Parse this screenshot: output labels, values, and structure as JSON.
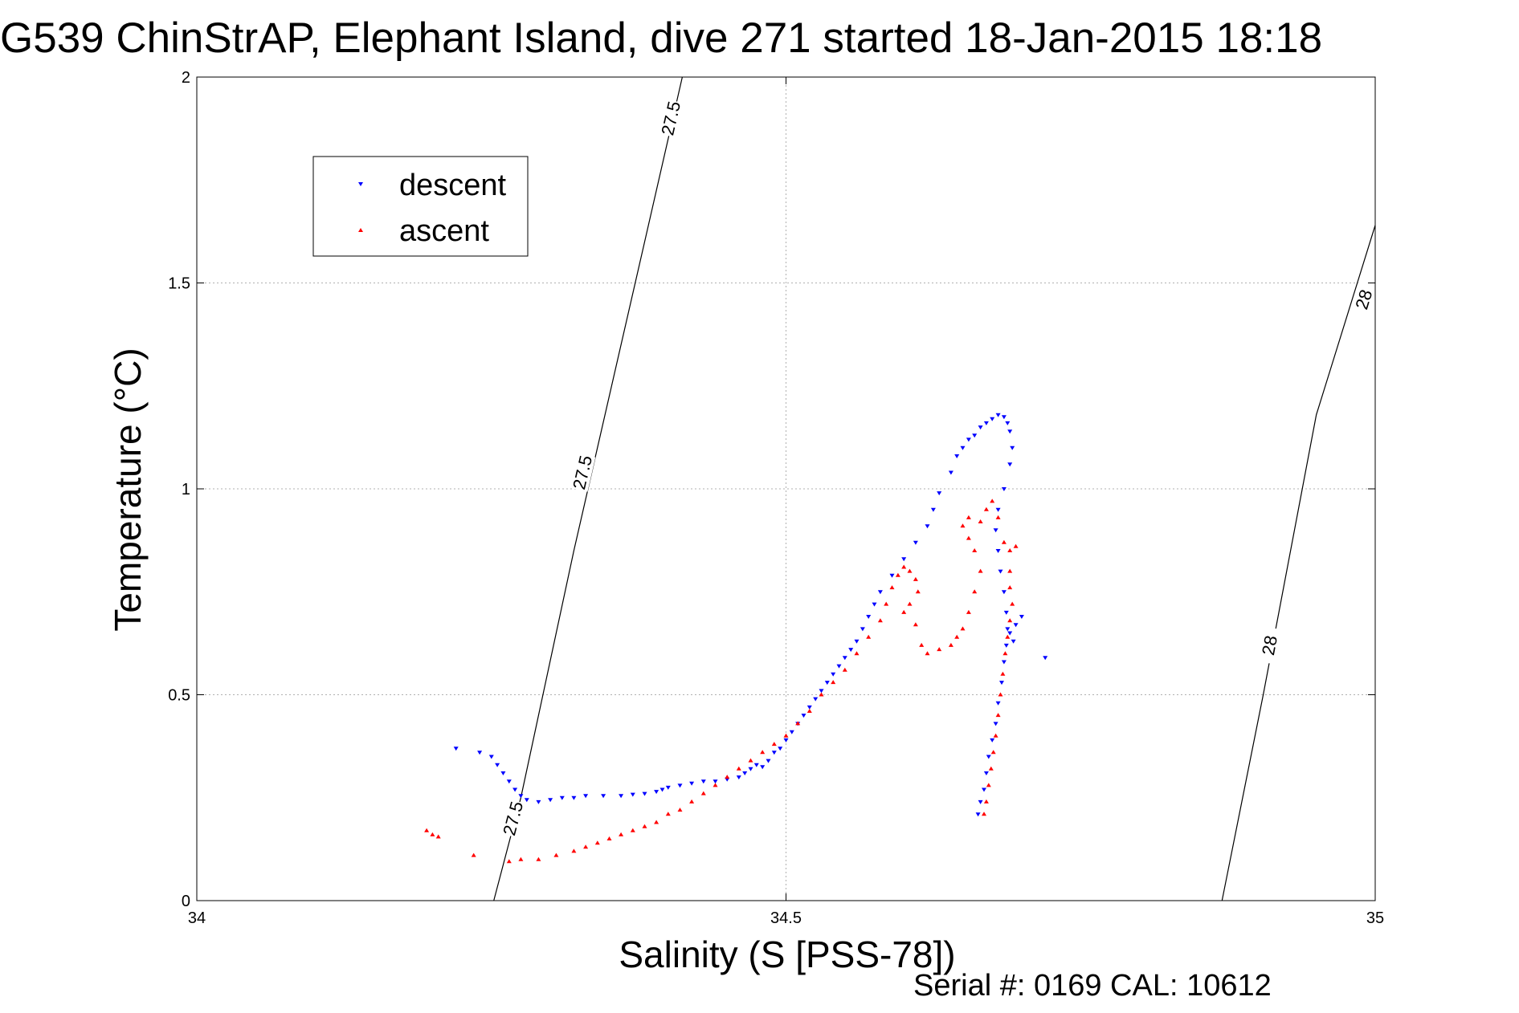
{
  "title": "G539 ChinStrAP, Elephant Island, dive 271 started 18-Jan-2015 18:18",
  "footer": "Serial #: 0169 CAL: 10612",
  "colors": {
    "descent": "#0000ff",
    "ascent": "#ff0000",
    "contour": "#000000",
    "grid": "#b0b0b0"
  },
  "chart_data": {
    "type": "scatter",
    "title": "G539 ChinStrAP, Elephant Island, dive 271 started 18-Jan-2015 18:18",
    "xlabel": "Salinity (S [PSS-78])",
    "ylabel": "Temperature (°C)",
    "xlim": [
      34,
      35
    ],
    "ylim": [
      0,
      2
    ],
    "xticks": [
      34,
      34.5,
      35
    ],
    "xtick_labels": [
      "34",
      "34.5",
      "35"
    ],
    "yticks": [
      0,
      0.5,
      1,
      1.5,
      2
    ],
    "ytick_labels": [
      "0",
      "0.5",
      "1",
      "1.5",
      "2"
    ],
    "grid": true,
    "legend": {
      "placement": "top-left",
      "entries": [
        "descent",
        "ascent"
      ]
    },
    "contours": [
      {
        "label": "27.5",
        "points": [
          [
            34.252,
            0.0
          ],
          [
            34.275,
            0.25
          ],
          [
            34.32,
            0.85
          ],
          [
            34.38,
            1.6
          ],
          [
            34.412,
            2.0
          ]
        ],
        "label_positions": [
          [
            34.268,
            0.2
          ],
          [
            34.327,
            1.04
          ],
          [
            34.402,
            1.9
          ]
        ]
      },
      {
        "label": "28",
        "points": [
          [
            34.87,
            0.0
          ],
          [
            34.905,
            0.5
          ],
          [
            34.95,
            1.18
          ],
          [
            35.0,
            1.64
          ]
        ],
        "label_positions": [
          [
            34.91,
            0.62
          ],
          [
            34.99,
            1.46
          ]
        ]
      }
    ],
    "series": [
      {
        "name": "descent",
        "marker": "triangle-down",
        "points": [
          [
            34.22,
            0.37
          ],
          [
            34.24,
            0.36
          ],
          [
            34.25,
            0.35
          ],
          [
            34.255,
            0.33
          ],
          [
            34.26,
            0.31
          ],
          [
            34.265,
            0.29
          ],
          [
            34.27,
            0.27
          ],
          [
            34.275,
            0.255
          ],
          [
            34.28,
            0.245
          ],
          [
            34.29,
            0.24
          ],
          [
            34.3,
            0.245
          ],
          [
            34.31,
            0.25
          ],
          [
            34.32,
            0.25
          ],
          [
            34.33,
            0.255
          ],
          [
            34.345,
            0.255
          ],
          [
            34.36,
            0.255
          ],
          [
            34.37,
            0.258
          ],
          [
            34.38,
            0.26
          ],
          [
            34.39,
            0.265
          ],
          [
            34.395,
            0.27
          ],
          [
            34.4,
            0.275
          ],
          [
            34.41,
            0.28
          ],
          [
            34.42,
            0.285
          ],
          [
            34.43,
            0.29
          ],
          [
            34.44,
            0.29
          ],
          [
            34.45,
            0.295
          ],
          [
            34.46,
            0.3
          ],
          [
            34.465,
            0.31
          ],
          [
            34.47,
            0.32
          ],
          [
            34.475,
            0.33
          ],
          [
            34.48,
            0.325
          ],
          [
            34.485,
            0.34
          ],
          [
            34.49,
            0.36
          ],
          [
            34.495,
            0.37
          ],
          [
            34.5,
            0.39
          ],
          [
            34.505,
            0.41
          ],
          [
            34.51,
            0.43
          ],
          [
            34.515,
            0.45
          ],
          [
            34.52,
            0.47
          ],
          [
            34.525,
            0.49
          ],
          [
            34.53,
            0.51
          ],
          [
            34.535,
            0.53
          ],
          [
            34.54,
            0.55
          ],
          [
            34.545,
            0.57
          ],
          [
            34.55,
            0.59
          ],
          [
            34.555,
            0.61
          ],
          [
            34.56,
            0.63
          ],
          [
            34.565,
            0.66
          ],
          [
            34.57,
            0.69
          ],
          [
            34.575,
            0.72
          ],
          [
            34.58,
            0.75
          ],
          [
            34.59,
            0.79
          ],
          [
            34.6,
            0.83
          ],
          [
            34.61,
            0.87
          ],
          [
            34.62,
            0.91
          ],
          [
            34.625,
            0.95
          ],
          [
            34.63,
            0.99
          ],
          [
            34.64,
            1.04
          ],
          [
            34.645,
            1.08
          ],
          [
            34.65,
            1.1
          ],
          [
            34.655,
            1.12
          ],
          [
            34.66,
            1.13
          ],
          [
            34.665,
            1.15
          ],
          [
            34.67,
            1.16
          ],
          [
            34.675,
            1.17
          ],
          [
            34.68,
            1.18
          ],
          [
            34.685,
            1.175
          ],
          [
            34.688,
            1.16
          ],
          [
            34.69,
            1.14
          ],
          [
            34.692,
            1.1
          ],
          [
            34.69,
            1.06
          ],
          [
            34.685,
            1.0
          ],
          [
            34.68,
            0.95
          ],
          [
            34.678,
            0.9
          ],
          [
            34.68,
            0.85
          ],
          [
            34.682,
            0.8
          ],
          [
            34.685,
            0.75
          ],
          [
            34.687,
            0.7
          ],
          [
            34.688,
            0.66
          ],
          [
            34.687,
            0.62
          ],
          [
            34.685,
            0.58
          ],
          [
            34.683,
            0.53
          ],
          [
            34.68,
            0.48
          ],
          [
            34.678,
            0.43
          ],
          [
            34.675,
            0.39
          ],
          [
            34.672,
            0.35
          ],
          [
            34.67,
            0.31
          ],
          [
            34.668,
            0.27
          ],
          [
            34.665,
            0.24
          ],
          [
            34.663,
            0.21
          ],
          [
            34.69,
            0.65
          ],
          [
            34.693,
            0.63
          ],
          [
            34.695,
            0.67
          ],
          [
            34.7,
            0.69
          ],
          [
            34.72,
            0.59
          ]
        ]
      },
      {
        "name": "ascent",
        "marker": "triangle-up",
        "points": [
          [
            34.195,
            0.17
          ],
          [
            34.2,
            0.16
          ],
          [
            34.205,
            0.155
          ],
          [
            34.235,
            0.11
          ],
          [
            34.265,
            0.095
          ],
          [
            34.275,
            0.1
          ],
          [
            34.29,
            0.1
          ],
          [
            34.305,
            0.11
          ],
          [
            34.32,
            0.12
          ],
          [
            34.33,
            0.13
          ],
          [
            34.34,
            0.14
          ],
          [
            34.35,
            0.15
          ],
          [
            34.36,
            0.16
          ],
          [
            34.37,
            0.17
          ],
          [
            34.38,
            0.18
          ],
          [
            34.39,
            0.19
          ],
          [
            34.4,
            0.21
          ],
          [
            34.41,
            0.22
          ],
          [
            34.42,
            0.24
          ],
          [
            34.43,
            0.26
          ],
          [
            34.44,
            0.28
          ],
          [
            34.45,
            0.3
          ],
          [
            34.46,
            0.32
          ],
          [
            34.47,
            0.34
          ],
          [
            34.48,
            0.36
          ],
          [
            34.49,
            0.38
          ],
          [
            34.5,
            0.4
          ],
          [
            34.51,
            0.43
          ],
          [
            34.52,
            0.46
          ],
          [
            34.53,
            0.5
          ],
          [
            34.54,
            0.53
          ],
          [
            34.55,
            0.56
          ],
          [
            34.56,
            0.6
          ],
          [
            34.57,
            0.64
          ],
          [
            34.58,
            0.68
          ],
          [
            34.585,
            0.72
          ],
          [
            34.59,
            0.76
          ],
          [
            34.595,
            0.79
          ],
          [
            34.6,
            0.81
          ],
          [
            34.605,
            0.8
          ],
          [
            34.61,
            0.78
          ],
          [
            34.612,
            0.75
          ],
          [
            34.605,
            0.72
          ],
          [
            34.6,
            0.7
          ],
          [
            34.61,
            0.67
          ],
          [
            34.615,
            0.62
          ],
          [
            34.62,
            0.6
          ],
          [
            34.63,
            0.61
          ],
          [
            34.64,
            0.62
          ],
          [
            34.645,
            0.64
          ],
          [
            34.65,
            0.66
          ],
          [
            34.655,
            0.7
          ],
          [
            34.66,
            0.75
          ],
          [
            34.665,
            0.8
          ],
          [
            34.66,
            0.85
          ],
          [
            34.655,
            0.88
          ],
          [
            34.65,
            0.91
          ],
          [
            34.655,
            0.93
          ],
          [
            34.665,
            0.92
          ],
          [
            34.67,
            0.95
          ],
          [
            34.675,
            0.97
          ],
          [
            34.68,
            0.93
          ],
          [
            34.685,
            0.87
          ],
          [
            34.69,
            0.85
          ],
          [
            34.695,
            0.86
          ],
          [
            34.69,
            0.8
          ],
          [
            34.69,
            0.76
          ],
          [
            34.692,
            0.72
          ],
          [
            34.69,
            0.68
          ],
          [
            34.688,
            0.64
          ],
          [
            34.686,
            0.6
          ],
          [
            34.684,
            0.55
          ],
          [
            34.682,
            0.5
          ],
          [
            34.68,
            0.45
          ],
          [
            34.678,
            0.4
          ],
          [
            34.676,
            0.36
          ],
          [
            34.674,
            0.32
          ],
          [
            34.672,
            0.28
          ],
          [
            34.67,
            0.24
          ],
          [
            34.668,
            0.21
          ]
        ]
      }
    ]
  }
}
